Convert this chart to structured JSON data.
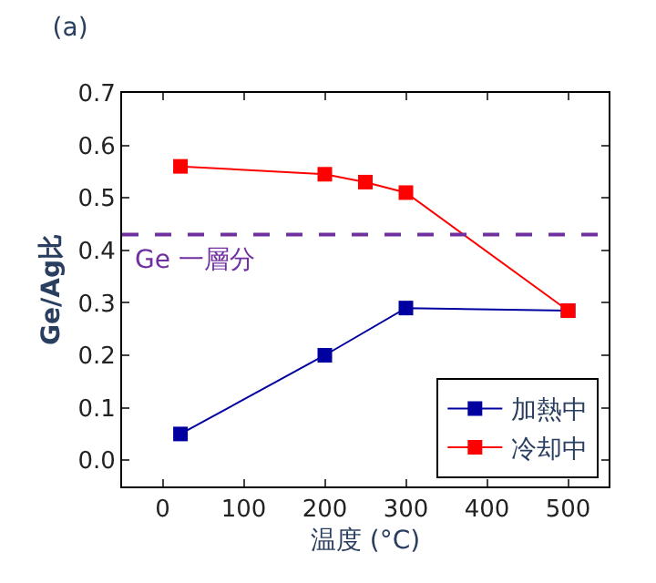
{
  "chart_data": {
    "type": "line",
    "title": "(a)",
    "xlabel": "温度 (°C)",
    "ylabel": "Ge/Ag比",
    "series": [
      {
        "name": "加熱中",
        "color": "#0000a0",
        "x": [
          22,
          200,
          300,
          500
        ],
        "values": [
          0.05,
          0.2,
          0.29,
          0.285
        ]
      },
      {
        "name": "冷却中",
        "color": "#ff0000",
        "x": [
          22,
          200,
          250,
          300,
          500
        ],
        "values": [
          0.56,
          0.545,
          0.53,
          0.51,
          0.285
        ]
      }
    ],
    "xlim": [
      -50,
      550
    ],
    "xticks": [
      0,
      100,
      200,
      300,
      400,
      500
    ],
    "ylim": [
      -0.05,
      0.7
    ],
    "yticks": [
      {
        "value": 0,
        "label": "0.0"
      },
      0.1,
      0.2,
      0.3,
      0.4,
      0.5,
      0.6,
      0.7
    ],
    "ref_lines": [
      {
        "axis": "y",
        "value": 0.43,
        "label": "Ge 一層分",
        "color": "#7030a0",
        "line_style": "dashed"
      }
    ],
    "marker": "square",
    "line_style": "solid",
    "legend": "bottom right"
  }
}
